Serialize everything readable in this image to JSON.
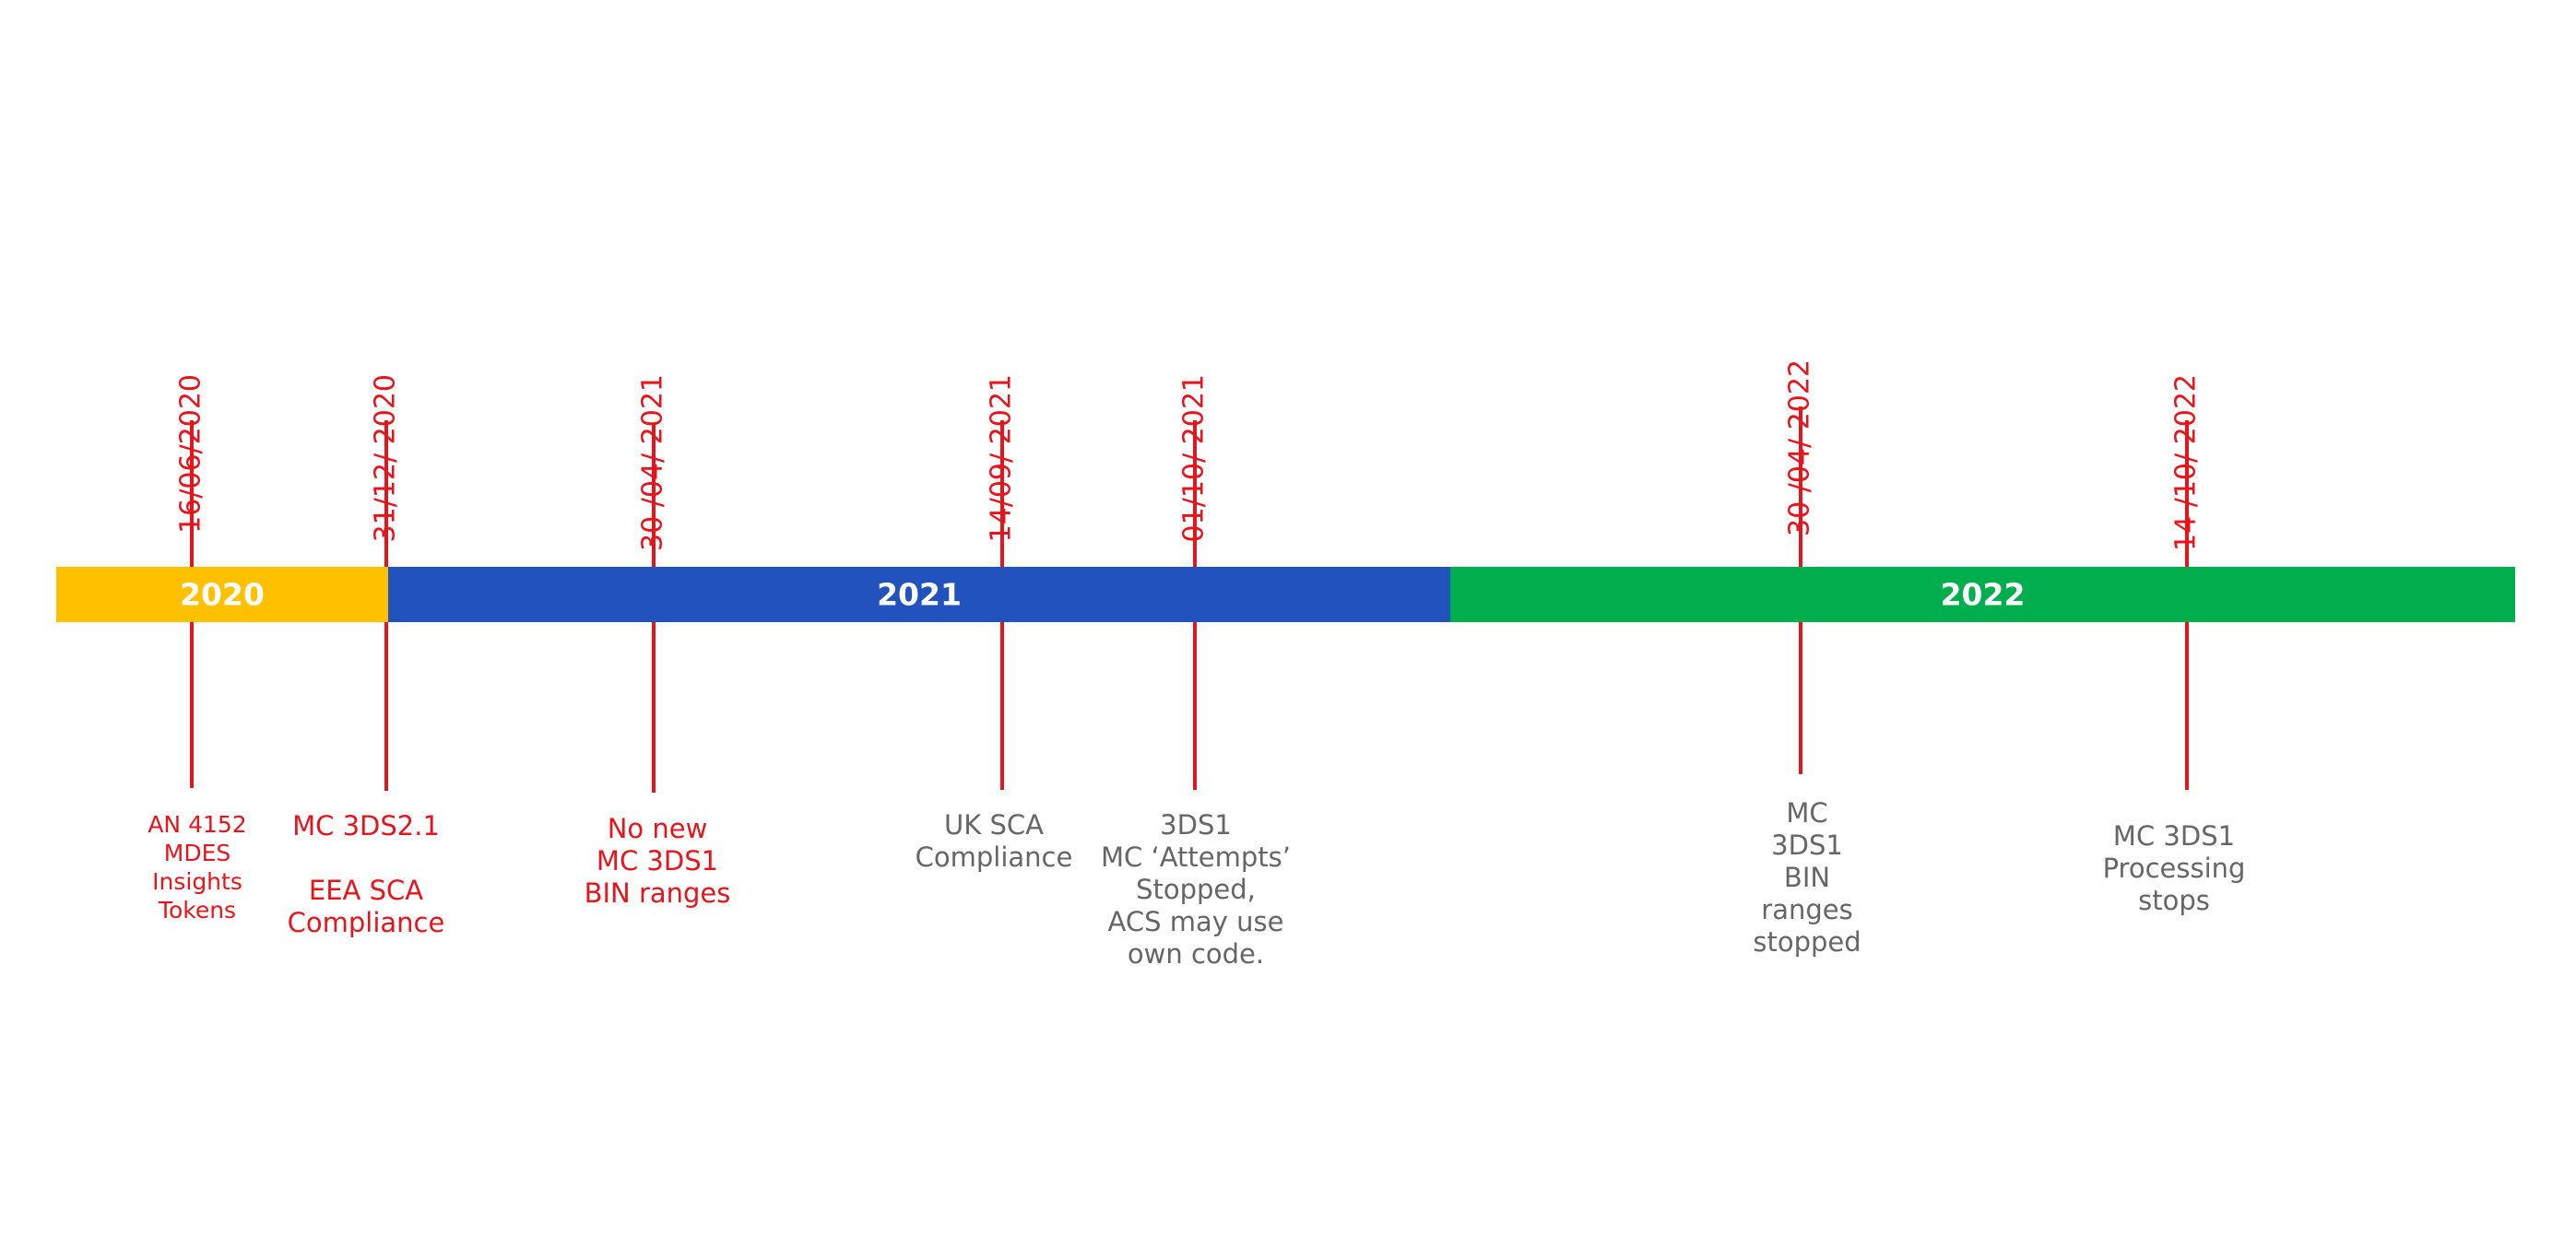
{
  "timeline": {
    "years": [
      {
        "label": "2020",
        "color": "#ffc000"
      },
      {
        "label": "2021",
        "color": "#2152bd"
      },
      {
        "label": "2022",
        "color": "#00ae4d"
      }
    ],
    "events": [
      {
        "date": "16/06/2020",
        "color": "#e8141b",
        "notes": [
          [
            "AN 4152",
            "MDES",
            "Insights",
            "Tokens"
          ]
        ]
      },
      {
        "date": "31/12/ 2020",
        "color": "#e8141b",
        "notes": [
          [
            "MC 3DS2.1"
          ],
          [
            "EEA SCA",
            "Compliance"
          ]
        ]
      },
      {
        "date": "30 /04/ 2021",
        "color": "#e8141b",
        "notes": [
          [
            "No new",
            "MC 3DS1",
            "BIN ranges"
          ]
        ]
      },
      {
        "date": "14/09/ 2021",
        "color": "#666666",
        "notes": [
          [
            "UK SCA",
            "Compliance"
          ]
        ]
      },
      {
        "date": "01/10/ 2021",
        "color": "#666666",
        "notes": [
          [
            "3DS1",
            "MC ‘Attempts’",
            "Stopped,",
            "ACS may use",
            "own code."
          ]
        ]
      },
      {
        "date": "30 /04/ 2022",
        "color": "#666666",
        "notes": [
          [
            "MC",
            "3DS1",
            "BIN",
            "ranges",
            "stopped"
          ]
        ]
      },
      {
        "date": "14 /10/ 2022",
        "color": "#666666",
        "notes": [
          [
            "MC 3DS1",
            "Processing",
            "stops"
          ]
        ]
      }
    ]
  }
}
